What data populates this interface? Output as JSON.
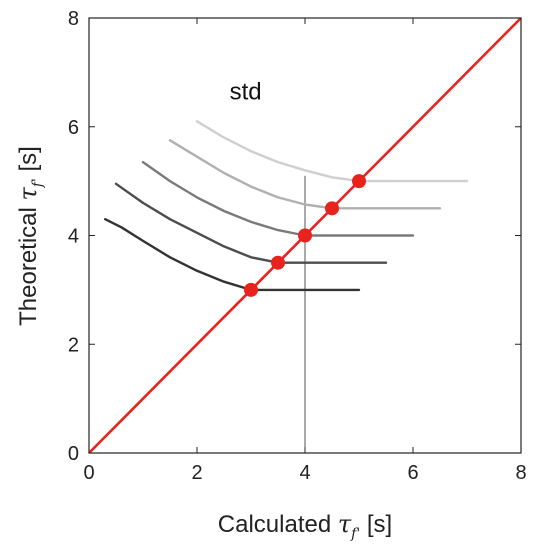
{
  "chart_data": {
    "type": "line",
    "title": "",
    "xlabel": {
      "prefix": "Calculated ",
      "symbol": "τ",
      "sub": "f'",
      "suffix": " [s]"
    },
    "ylabel": {
      "prefix": "Theoretical ",
      "symbol": "τ",
      "sub": "f'",
      "suffix": " [s]"
    },
    "xlim": [
      0,
      8
    ],
    "ylim": [
      0,
      8
    ],
    "xticks": [
      0,
      2,
      4,
      6,
      8
    ],
    "yticks": [
      0,
      2,
      4,
      6,
      8
    ],
    "grid": false,
    "annotation": {
      "text": "std",
      "x": 2.9,
      "y": 6.5
    },
    "identity_line": {
      "x": [
        0,
        8
      ],
      "y": [
        0,
        8
      ],
      "color": "#e8231e"
    },
    "vertical_line": {
      "x": 4,
      "y": [
        0,
        5.1
      ],
      "color": "#555555"
    },
    "markers": {
      "x": [
        3,
        3.5,
        4,
        4.5,
        5
      ],
      "y": [
        3,
        3.5,
        4,
        4.5,
        5
      ],
      "color": "#e8231e"
    },
    "series": [
      {
        "color": "#333333",
        "x": [
          0.3,
          0.6,
          1.0,
          1.5,
          2.0,
          2.5,
          3.0,
          4.0,
          5.0
        ],
        "y": [
          4.3,
          4.15,
          3.9,
          3.6,
          3.35,
          3.15,
          3.0,
          3.0,
          3.0
        ]
      },
      {
        "color": "#4d4d4d",
        "x": [
          0.5,
          1.0,
          1.5,
          2.0,
          2.5,
          3.0,
          3.5,
          4.5,
          5.5
        ],
        "y": [
          4.95,
          4.6,
          4.3,
          4.05,
          3.8,
          3.6,
          3.5,
          3.5,
          3.5
        ]
      },
      {
        "color": "#7a7a7a",
        "x": [
          1.0,
          1.5,
          2.0,
          2.5,
          3.0,
          3.5,
          4.0,
          5.0,
          6.0
        ],
        "y": [
          5.35,
          5.0,
          4.7,
          4.45,
          4.25,
          4.1,
          4.0,
          4.0,
          4.0
        ]
      },
      {
        "color": "#b0b0b0",
        "x": [
          1.5,
          2.0,
          2.5,
          3.0,
          3.5,
          4.0,
          4.5,
          5.5,
          6.5
        ],
        "y": [
          5.75,
          5.45,
          5.15,
          4.9,
          4.7,
          4.57,
          4.5,
          4.5,
          4.5
        ]
      },
      {
        "color": "#cfcfcf",
        "x": [
          2.0,
          2.5,
          3.0,
          3.5,
          4.0,
          4.5,
          5.0,
          6.0,
          7.0
        ],
        "y": [
          6.1,
          5.8,
          5.55,
          5.35,
          5.2,
          5.07,
          5.0,
          5.0,
          5.0
        ]
      }
    ]
  }
}
